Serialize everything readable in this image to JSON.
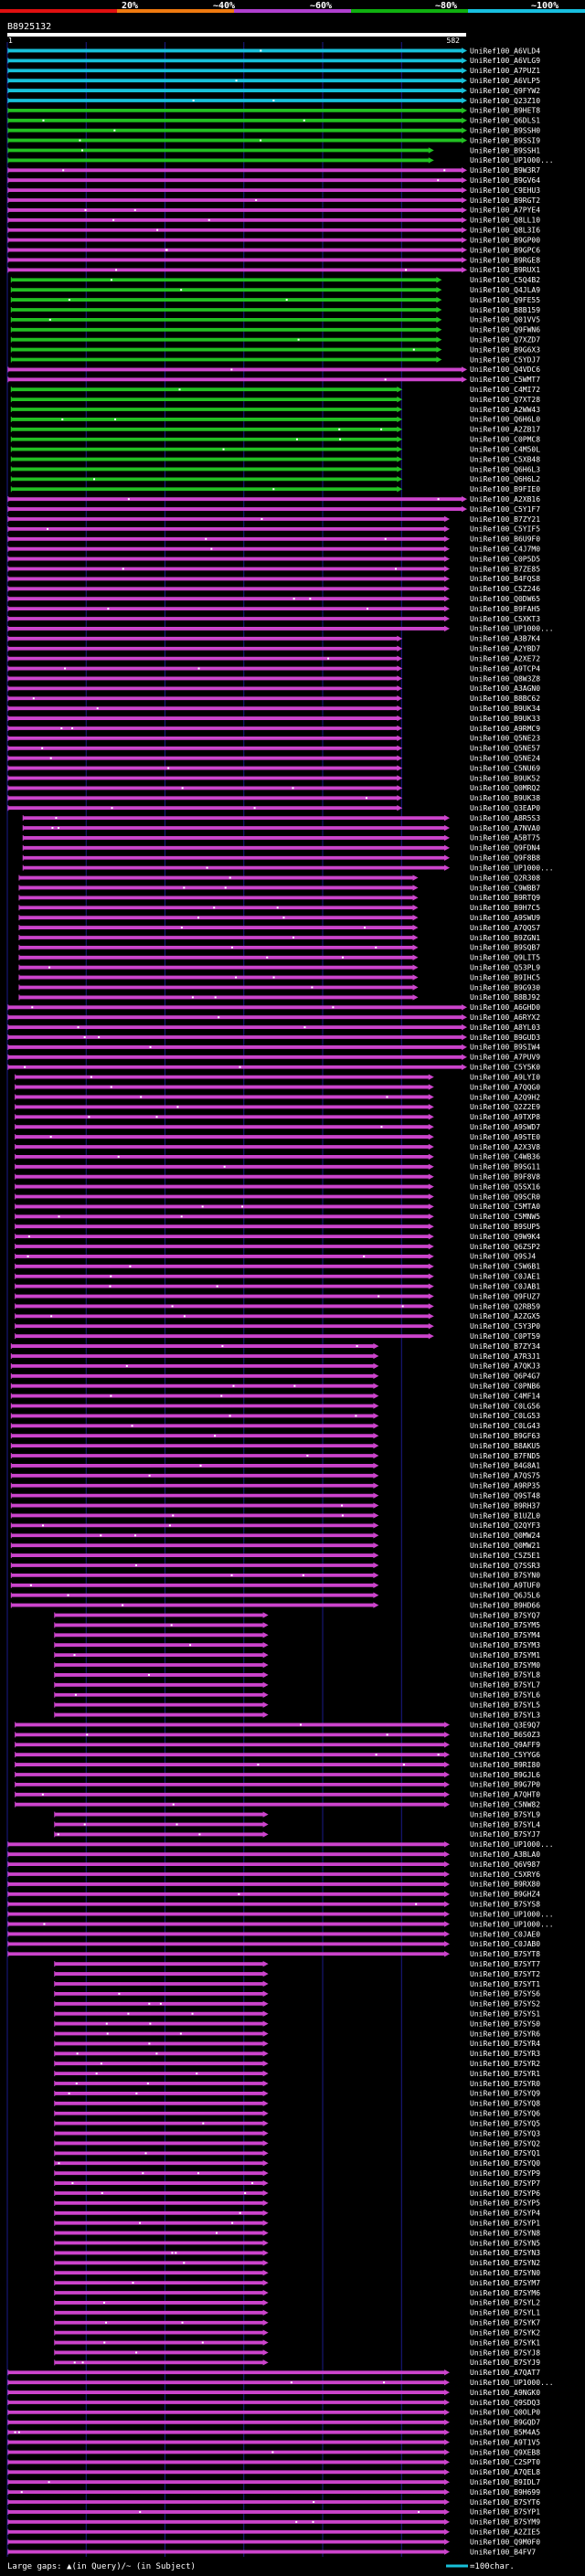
{
  "header": {
    "query_id": "B8925132",
    "start_label": "1",
    "end_label": "582",
    "scale_labels": [
      "20%",
      "~40%",
      "~60%",
      "~80%",
      "~100%"
    ]
  },
  "legend": {
    "gap_text": "Large gaps: ▲(in Query)/~ (in Subject)",
    "scale_text": "=100char."
  },
  "colors": {
    "scale_bar": [
      "#e01010",
      "#f07a10",
      "#b040d0",
      "#10b010",
      "#18c0e0"
    ],
    "identity": {
      "cyan": "#18c0d8",
      "green": "#22c022",
      "magenta": "#cc44cc"
    },
    "gap_mark": "#ffffff",
    "text": "#ffffff",
    "background": "#000000",
    "grid": "#1a1a8a"
  },
  "chart_data": {
    "type": "alignment-overview",
    "query_length": 582,
    "x_ticks": [
      0,
      100,
      200,
      300,
      400,
      500
    ],
    "hit_groups": [
      {
        "identity": "cyan",
        "start": 1,
        "end": 582,
        "labels": [
          "UniRef100_A6VLD4",
          "UniRef100_A6VLG9",
          "UniRef100_A7PUZ1",
          "UniRef100_A6VLP5",
          "UniRef100_Q9FYW2",
          "UniRef100_Q23Z10"
        ]
      },
      {
        "identity": "green",
        "start": 1,
        "end": 582,
        "labels": [
          "UniRef100_B9HET8",
          "UniRef100_Q6DLS1",
          "UniRef100_B9SSH0",
          "UniRef100_B9SSI9"
        ]
      },
      {
        "identity": "green",
        "start": 1,
        "end": 540,
        "labels": [
          "UniRef100_B9SSH1",
          "UniRef100_UP1000..."
        ]
      },
      {
        "identity": "magenta",
        "start": 1,
        "end": 582,
        "labels": [
          "UniRef100_B9W3R7",
          "UniRef100_B9GV64",
          "UniRef100_C9EHU3",
          "UniRef100_B9RGT2",
          "UniRef100_A7PYE4",
          "UniRef100_Q8LL10",
          "UniRef100_Q8L3I6",
          "UniRef100_B9GP00",
          "UniRef100_B9GPC6",
          "UniRef100_B9RGE8",
          "UniRef100_B9RUX1"
        ]
      },
      {
        "identity": "green",
        "start": 5,
        "end": 550,
        "labels": [
          "UniRef100_C5Q4B2",
          "UniRef100_Q4JLA9",
          "UniRef100_Q9FE55",
          "UniRef100_B8B159",
          "UniRef100_Q01VV5",
          "UniRef100_Q9FWN6",
          "UniRef100_Q7XZD7",
          "UniRef100_B9G6X3",
          "UniRef100_C5YDJ7"
        ]
      },
      {
        "identity": "magenta",
        "start": 1,
        "end": 582,
        "labels": [
          "UniRef100_Q4VDC6",
          "UniRef100_C5WMT7"
        ]
      },
      {
        "identity": "green",
        "start": 5,
        "end": 500,
        "labels": [
          "UniRef100_C4MI72",
          "UniRef100_Q7XT28",
          "UniRef100_A2WW43",
          "UniRef100_Q6H6L0",
          "UniRef100_A2ZB17",
          "UniRef100_C0PMC8",
          "UniRef100_C4M50L",
          "UniRef100_C5XB48",
          "UniRef100_Q6H6L3",
          "UniRef100_Q6H6L2",
          "UniRef100_B9FIE0"
        ]
      },
      {
        "identity": "magenta",
        "start": 1,
        "end": 582,
        "labels": [
          "UniRef100_A2XB16",
          "UniRef100_C5Y1F7"
        ]
      },
      {
        "identity": "magenta",
        "start": 1,
        "end": 560,
        "labels": [
          "UniRef100_B7ZY21",
          "UniRef100_C5YIF5",
          "UniRef100_B6U9F0",
          "UniRef100_C4J7M0",
          "UniRef100_C0P5D5",
          "UniRef100_B7ZE85",
          "UniRef100_B4FQS8",
          "UniRef100_C5Z246",
          "UniRef100_Q0DW65",
          "UniRef100_B9FAH5",
          "UniRef100_C5XKT3",
          "UniRef100_UP1000..."
        ]
      },
      {
        "identity": "magenta",
        "start": 1,
        "end": 500,
        "labels": [
          "UniRef100_A3B7K4",
          "UniRef100_A2YBD7",
          "UniRef100_A2XE72",
          "UniRef100_A9TCP4",
          "UniRef100_Q8W3Z8",
          "UniRef100_A3AGN0",
          "UniRef100_B8BC62",
          "UniRef100_B9UK34",
          "UniRef100_B9UK33",
          "UniRef100_A9RMC9",
          "UniRef100_Q5NE23",
          "UniRef100_Q5NE57",
          "UniRef100_Q5NE24",
          "UniRef100_C5NU69",
          "UniRef100_B9UK52",
          "UniRef100_Q0MRQ2",
          "UniRef100_B9UK38",
          "UniRef100_Q3EAP0"
        ]
      },
      {
        "identity": "magenta",
        "start": 20,
        "end": 560,
        "labels": [
          "UniRef100_A8R5S3",
          "UniRef100_A7NVA0",
          "UniRef100_A5BT75",
          "UniRef100_Q9FDN4",
          "UniRef100_Q9F8B8",
          "UniRef100_UP1000..."
        ]
      },
      {
        "identity": "magenta",
        "start": 15,
        "end": 520,
        "labels": [
          "UniRef100_Q2R308",
          "UniRef100_C9WBB7",
          "UniRef100_B9RTQ9",
          "UniRef100_B9H7C5",
          "UniRef100_A9SWU9",
          "UniRef100_A7QQS7",
          "UniRef100_B9ZGN1",
          "UniRef100_B9SQB7",
          "UniRef100_Q9LIT5",
          "UniRef100_Q53PL9",
          "UniRef100_B9IHC5",
          "UniRef100_B9G930",
          "UniRef100_B8BJ92"
        ]
      },
      {
        "identity": "magenta",
        "start": 1,
        "end": 582,
        "labels": [
          "UniRef100_A6GHD0",
          "UniRef100_A6RYX2",
          "UniRef100_A8YL03",
          "UniRef100_B9GUD3",
          "UniRef100_B9SIW4",
          "UniRef100_A7PUV9",
          "UniRef100_C5Y5K0"
        ]
      },
      {
        "identity": "magenta",
        "start": 10,
        "end": 540,
        "labels": [
          "UniRef100_A9LYI0",
          "UniRef100_A7QQG0",
          "UniRef100_A2Q9H2",
          "UniRef100_Q2Z2E9",
          "UniRef100_A9TXP8",
          "UniRef100_A9SWD7",
          "UniRef100_A9STE0",
          "UniRef100_A2X3V8",
          "UniRef100_C4WB36",
          "UniRef100_B9SG11",
          "UniRef100_B9F8V8",
          "UniRef100_Q5SX16",
          "UniRef100_Q9SCR0",
          "UniRef100_C5MTA0",
          "UniRef100_C5MNW5",
          "UniRef100_B9SUP5",
          "UniRef100_Q9W9K4",
          "UniRef100_Q6ZSP2",
          "UniRef100_Q9SJ4",
          "UniRef100_C5W6B1",
          "UniRef100_C0JAE1",
          "UniRef100_C0JAB1",
          "UniRef100_Q9FUZ7",
          "UniRef100_Q2RB59",
          "UniRef100_A2ZGX5",
          "UniRef100_C5Y3P0",
          "UniRef100_C0PT59"
        ]
      },
      {
        "identity": "magenta",
        "start": 5,
        "end": 470,
        "labels": [
          "UniRef100_B7ZY34",
          "UniRef100_A7R3J1",
          "UniRef100_A7QKJ3",
          "UniRef100_Q6P4G7",
          "UniRef100_C0PNB6",
          "UniRef100_C4MF14",
          "UniRef100_C0LG56",
          "UniRef100_C0LG53",
          "UniRef100_C0LG43",
          "UniRef100_B9GF63",
          "UniRef100_B8AKU5",
          "UniRef100_B7FND5",
          "UniRef100_B4G8A1",
          "UniRef100_A7QS75",
          "UniRef100_A9RP35",
          "UniRef100_Q9ST48",
          "UniRef100_B9RH37",
          "UniRef100_B1UZL0",
          "UniRef100_Q2QYF3",
          "UniRef100_Q0MW24",
          "UniRef100_Q0MW21",
          "UniRef100_C5Z5E1",
          "UniRef100_Q7SSR3",
          "UniRef100_B7SYN0",
          "UniRef100_A9TUF0",
          "UniRef100_Q6J5L6",
          "UniRef100_B9HD66"
        ]
      },
      {
        "identity": "magenta",
        "start": 60,
        "end": 330,
        "labels": [
          "UniRef100_B7SYQ7",
          "UniRef100_B7SYM5",
          "UniRef100_B7SYM4",
          "UniRef100_B7SYM3",
          "UniRef100_B7SYM1",
          "UniRef100_B7SYM0",
          "UniRef100_B7SYL8",
          "UniRef100_B7SYL7",
          "UniRef100_B7SYL6",
          "UniRef100_B7SYL5",
          "UniRef100_B7SYL3"
        ]
      },
      {
        "identity": "magenta",
        "start": 10,
        "end": 560,
        "labels": [
          "UniRef100_Q3E9Q7",
          "UniRef100_B6S0Z3",
          "UniRef100_Q9AFF9",
          "UniRef100_C5YYG6",
          "UniRef100_B9RI80",
          "UniRef100_B9GJL6",
          "UniRef100_B9G7P0",
          "UniRef100_A7QHT0",
          "UniRef100_C5NW82"
        ]
      },
      {
        "identity": "magenta",
        "start": 60,
        "end": 330,
        "labels": [
          "UniRef100_B7SYL9",
          "UniRef100_B7SYL4",
          "UniRef100_B7SYJ7"
        ]
      },
      {
        "identity": "magenta",
        "start": 1,
        "end": 560,
        "labels": [
          "UniRef100_UP1000...",
          "UniRef100_A3BLA0",
          "UniRef100_Q6V987",
          "UniRef100_C5XRY6",
          "UniRef100_B9RX80",
          "UniRef100_B9GHZ4",
          "UniRef100_B7SYS8",
          "UniRef100_UP1000...",
          "UniRef100_UP1000...",
          "UniRef100_C0JAE0",
          "UniRef100_C0JAB0",
          "UniRef100_B7SYT8"
        ]
      },
      {
        "identity": "magenta",
        "start": 60,
        "end": 330,
        "labels": [
          "UniRef100_B7SYT7",
          "UniRef100_B7SYT2",
          "UniRef100_B7SYT1",
          "UniRef100_B7SYS6",
          "UniRef100_B7SYS2",
          "UniRef100_B7SYS1",
          "UniRef100_B7SYS0",
          "UniRef100_B7SYR6",
          "UniRef100_B7SYR4",
          "UniRef100_B7SYR3",
          "UniRef100_B7SYR2",
          "UniRef100_B7SYR1",
          "UniRef100_B7SYR0",
          "UniRef100_B7SYQ9",
          "UniRef100_B7SYQ8",
          "UniRef100_B7SYQ6",
          "UniRef100_B7SYQ5",
          "UniRef100_B7SYQ3",
          "UniRef100_B7SYQ2",
          "UniRef100_B7SYQ1",
          "UniRef100_B7SYQ0",
          "UniRef100_B7SYP9",
          "UniRef100_B7SYP7",
          "UniRef100_B7SYP6",
          "UniRef100_B7SYP5",
          "UniRef100_B7SYP4",
          "UniRef100_B7SYP1",
          "UniRef100_B7SYN8",
          "UniRef100_B7SYN5",
          "UniRef100_B7SYN3",
          "UniRef100_B7SYN2",
          "UniRef100_B7SYN0",
          "UniRef100_B7SYM7",
          "UniRef100_B7SYM6",
          "UniRef100_B7SYL2",
          "UniRef100_B7SYL1",
          "UniRef100_B7SYK7",
          "UniRef100_B7SYK2",
          "UniRef100_B7SYK1",
          "UniRef100_B7SYJ8",
          "UniRef100_B7SYJ9"
        ]
      },
      {
        "identity": "magenta",
        "start": 1,
        "end": 560,
        "labels": [
          "UniRef100_A7QAT7",
          "UniRef100_UP1000...",
          "UniRef100_A9NGK0",
          "UniRef100_Q9SDQ3",
          "UniRef100_Q0OLP0",
          "UniRef100_B9GQD7",
          "UniRef100_B5M4A5",
          "UniRef100_A9T1V5",
          "UniRef100_Q9XEB8",
          "UniRef100_C2SPT0",
          "UniRef100_A7QEL8",
          "UniRef100_B9IDL7",
          "UniRef100_B9H699",
          "UniRef100_B7SYT6",
          "UniRef100_B7SYP1",
          "UniRef100_B7SYM9",
          "UniRef100_A2ZIE5",
          "UniRef100_Q9M0F0",
          "UniRef100_B4FV7"
        ]
      }
    ]
  }
}
